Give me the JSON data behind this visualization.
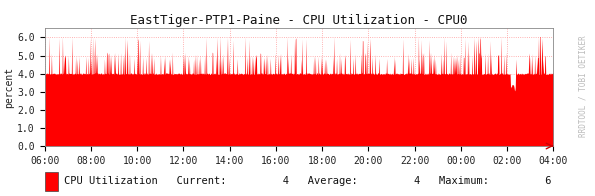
{
  "title": "EastTiger-PTP1-Paine - CPU Utilization - CPU0",
  "ylabel": "percent",
  "watermark": "RRDTOOL / TOBI OETIKER",
  "legend_label": "CPU Utilization",
  "legend_current": "4",
  "legend_average": "4",
  "legend_maximum": "6",
  "x_tick_labels": [
    "06:00",
    "08:00",
    "10:00",
    "12:00",
    "14:00",
    "16:00",
    "18:00",
    "20:00",
    "22:00",
    "00:00",
    "02:00",
    "04:00"
  ],
  "ylim": [
    0.0,
    6.5
  ],
  "y_ticks": [
    0.0,
    1.0,
    2.0,
    3.0,
    4.0,
    5.0,
    6.0
  ],
  "bg_color": "#ffffff",
  "plot_bg_color": "#ffffff",
  "grid_color": "#ff9999",
  "fill_color": "#ff0000",
  "line_color": "#ff0000",
  "title_fontsize": 9,
  "tick_fontsize": 7,
  "watermark_color": "#bbbbbb"
}
